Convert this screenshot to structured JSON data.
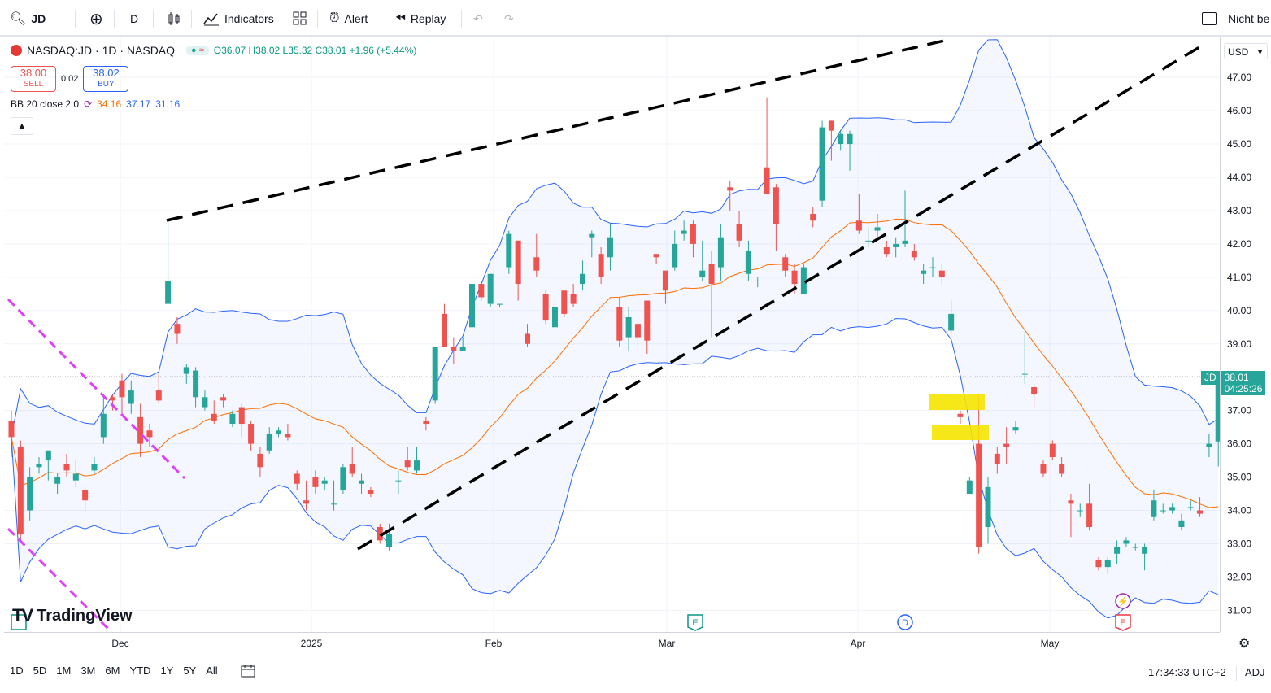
{
  "toolbar": {
    "symbol": "JD",
    "interval": "D",
    "indicators_label": "Indicators",
    "alert_label": "Alert",
    "replay_label": "Replay",
    "right_label": "Nicht be"
  },
  "legend": {
    "title": "NASDAQ:JD · 1D · NASDAQ",
    "ohlc": "O36.07 H38.02 L35.32 C38.01 +1.96 (+5.44%)",
    "sell_price": "38.00",
    "sell_label": "SELL",
    "spread": "0.02",
    "buy_price": "38.02",
    "buy_label": "BUY",
    "bb_name": "BB 20 close 2 0",
    "bb_basis": "34.16",
    "bb_upper": "37.17",
    "bb_lower": "31.16"
  },
  "currency": "USD",
  "price_badge": {
    "symbol": "JD",
    "price": "38.01",
    "countdown": "04:25:26"
  },
  "bottom": {
    "ranges": [
      "1D",
      "5D",
      "1M",
      "3M",
      "6M",
      "YTD",
      "1Y",
      "5Y",
      "All"
    ],
    "clock": "17:34:33 UTC+2",
    "adj": "ADJ"
  },
  "watermark": "TradingView",
  "colors": {
    "up": "#26a69a",
    "down": "#ef5350",
    "bb_band": "#2962ff",
    "bb_basis": "#ff6d00",
    "trend": "#000000",
    "magenta": "#e040fb",
    "highlight": "#f5e400"
  },
  "chart_data": {
    "type": "candlestick",
    "symbol": "NASDAQ:JD",
    "interval": "1D",
    "y_ticks": [
      "31.00",
      "32.00",
      "33.00",
      "34.00",
      "35.00",
      "36.00",
      "37.00",
      "38.00",
      "39.00",
      "40.00",
      "41.00",
      "42.00",
      "43.00",
      "44.00",
      "45.00",
      "46.00",
      "47.00"
    ],
    "ylim": [
      30.35,
      48.2
    ],
    "x_ticks": [
      "Dec",
      "2025",
      "Feb",
      "Mar",
      "Apr",
      "May"
    ],
    "last_price": 38.01,
    "candles": [
      [
        36.7,
        36.2,
        37.0,
        35.6
      ],
      [
        35.9,
        33.3,
        36.1,
        33.1
      ],
      [
        34.0,
        35.0,
        35.3,
        33.7
      ],
      [
        35.3,
        35.4,
        35.6,
        35.1
      ],
      [
        35.5,
        35.8,
        35.8,
        34.9
      ],
      [
        34.8,
        35.0,
        35.1,
        34.5
      ],
      [
        35.4,
        35.2,
        35.7,
        35.0
      ],
      [
        34.9,
        35.1,
        35.5,
        34.7
      ],
      [
        34.6,
        34.3,
        34.7,
        34.0
      ],
      [
        35.2,
        35.4,
        35.6,
        35.1
      ],
      [
        36.2,
        36.9,
        37.5,
        36.0
      ],
      [
        37.4,
        37.3,
        37.5,
        37.0
      ],
      [
        37.9,
        37.4,
        38.1,
        36.9
      ],
      [
        37.2,
        37.6,
        37.9,
        36.9
      ],
      [
        36.8,
        36.0,
        37.2,
        35.6
      ],
      [
        36.4,
        36.2,
        36.6,
        35.9
      ],
      [
        37.6,
        37.3,
        38.1,
        37.2
      ],
      [
        40.2,
        40.9,
        42.7,
        40.6
      ],
      [
        39.6,
        39.3,
        39.8,
        39.0
      ],
      [
        38.1,
        38.3,
        38.4,
        37.8
      ],
      [
        37.4,
        38.2,
        38.3,
        37.1
      ],
      [
        37.1,
        37.4,
        37.6,
        37.0
      ],
      [
        36.9,
        36.7,
        37.3,
        36.6
      ],
      [
        37.4,
        37.3,
        37.5,
        37.1
      ],
      [
        36.6,
        36.9,
        37.0,
        36.5
      ],
      [
        37.1,
        36.6,
        37.2,
        36.2
      ],
      [
        36.6,
        36.0,
        36.7,
        35.8
      ],
      [
        35.7,
        35.3,
        35.9,
        35.0
      ],
      [
        35.8,
        36.3,
        36.5,
        35.7
      ],
      [
        36.3,
        36.4,
        36.5,
        36.2
      ],
      [
        36.3,
        36.2,
        36.6,
        36.1
      ],
      [
        35.1,
        34.8,
        35.2,
        34.6
      ],
      [
        34.3,
        34.2,
        34.9,
        34.0
      ],
      [
        35.0,
        34.7,
        35.2,
        34.5
      ],
      [
        34.8,
        34.9,
        35.0,
        34.6
      ],
      [
        34.2,
        34.2,
        34.9,
        34.0
      ],
      [
        34.6,
        35.3,
        35.4,
        34.5
      ],
      [
        35.4,
        35.1,
        35.9,
        35.0
      ],
      [
        34.8,
        34.9,
        35.1,
        34.5
      ],
      [
        34.6,
        34.5,
        34.7,
        34.4
      ],
      [
        33.5,
        33.1,
        33.6,
        33.0
      ],
      [
        32.9,
        33.3,
        33.6,
        32.8
      ],
      [
        34.9,
        34.9,
        35.2,
        34.5
      ],
      [
        35.5,
        35.3,
        35.9,
        35.2
      ],
      [
        35.2,
        35.5,
        35.9,
        35.1
      ],
      [
        36.7,
        36.6,
        36.8,
        36.4
      ],
      [
        37.3,
        38.9,
        38.9,
        37.2
      ],
      [
        39.9,
        38.9,
        40.2,
        38.9
      ],
      [
        38.9,
        38.8,
        39.2,
        38.4
      ],
      [
        38.8,
        38.9,
        39.2,
        38.8
      ],
      [
        39.5,
        40.8,
        40.8,
        39.4
      ],
      [
        40.8,
        40.4,
        40.9,
        40.3
      ],
      [
        40.2,
        41.1,
        41.1,
        40.1
      ],
      [
        40.2,
        40.2,
        40.2,
        40.1
      ],
      [
        41.3,
        42.3,
        42.4,
        41.1
      ],
      [
        42.1,
        40.8,
        42.1,
        40.3
      ],
      [
        39.3,
        39.0,
        39.6,
        38.9
      ],
      [
        41.6,
        41.2,
        42.3,
        41.0
      ],
      [
        40.5,
        39.7,
        40.6,
        39.6
      ],
      [
        39.5,
        40.1,
        40.2,
        39.5
      ],
      [
        40.6,
        39.9,
        40.6,
        39.8
      ],
      [
        40.5,
        40.2,
        40.8,
        40.1
      ],
      [
        40.8,
        41.1,
        41.5,
        40.6
      ],
      [
        42.2,
        42.3,
        42.4,
        41.6
      ],
      [
        41.7,
        41.0,
        41.9,
        40.8
      ],
      [
        41.6,
        42.2,
        42.6,
        41.2
      ],
      [
        40.1,
        39.1,
        40.4,
        38.9
      ],
      [
        39.2,
        39.8,
        40.1,
        38.8
      ],
      [
        39.6,
        39.2,
        39.7,
        38.7
      ],
      [
        40.3,
        39.1,
        40.3,
        38.7
      ],
      [
        41.7,
        41.6,
        41.7,
        41.4
      ],
      [
        41.2,
        40.6,
        41.2,
        40.2
      ],
      [
        41.3,
        42.0,
        42.4,
        41.2
      ],
      [
        42.3,
        42.4,
        42.7,
        42.1
      ],
      [
        42.6,
        42.0,
        42.7,
        41.6
      ],
      [
        41.0,
        41.2,
        42.1,
        40.9
      ],
      [
        41.4,
        40.8,
        41.8,
        39.2
      ],
      [
        41.3,
        42.2,
        42.6,
        40.9
      ],
      [
        43.7,
        43.6,
        43.9,
        43.0
      ],
      [
        42.6,
        42.1,
        43.0,
        41.9
      ],
      [
        41.1,
        41.8,
        42.1,
        40.9
      ],
      [
        40.9,
        40.9,
        41.0,
        40.7
      ],
      [
        44.3,
        43.5,
        46.4,
        43.5
      ],
      [
        43.7,
        42.6,
        43.8,
        41.8
      ],
      [
        41.6,
        41.2,
        41.7,
        41.0
      ],
      [
        41.2,
        40.8,
        41.4,
        40.5
      ],
      [
        40.5,
        41.3,
        41.4,
        40.5
      ],
      [
        42.9,
        42.7,
        43.1,
        42.5
      ],
      [
        43.3,
        45.5,
        45.7,
        43.1
      ],
      [
        45.7,
        45.4,
        45.7,
        44.5
      ],
      [
        45.0,
        45.3,
        45.4,
        44.8
      ],
      [
        45.0,
        45.3,
        45.4,
        44.2
      ],
      [
        42.7,
        42.4,
        43.5,
        42.3
      ],
      [
        42.1,
        42.1,
        42.5,
        41.9
      ],
      [
        42.4,
        42.5,
        42.9,
        42.1
      ],
      [
        41.9,
        41.7,
        42.1,
        41.6
      ],
      [
        41.9,
        42.0,
        42.2,
        41.6
      ],
      [
        42.0,
        42.1,
        43.6,
        41.9
      ],
      [
        41.8,
        41.6,
        42.0,
        41.5
      ],
      [
        41.1,
        41.2,
        41.4,
        40.8
      ],
      [
        41.3,
        41.3,
        41.6,
        41.0
      ],
      [
        41.2,
        41.0,
        41.4,
        40.8
      ],
      [
        39.4,
        39.9,
        40.3,
        39.3
      ],
      [
        36.9,
        36.8,
        37.0,
        36.6
      ],
      [
        34.5,
        34.9,
        35.0,
        34.6
      ],
      [
        36.0,
        32.9,
        37.5,
        32.7
      ],
      [
        33.5,
        34.7,
        35.0,
        33.0
      ],
      [
        35.7,
        35.4,
        35.9,
        35.1
      ],
      [
        36.0,
        35.9,
        36.5,
        35.4
      ],
      [
        36.4,
        36.5,
        36.7,
        36.3
      ],
      [
        38.1,
        38.1,
        39.3,
        37.8
      ],
      [
        37.7,
        37.5,
        37.8,
        37.1
      ],
      [
        35.4,
        35.1,
        35.5,
        35.0
      ],
      [
        36.0,
        35.6,
        36.1,
        35.5
      ],
      [
        35.4,
        35.1,
        35.6,
        35.0
      ],
      [
        34.3,
        34.2,
        34.5,
        33.2
      ],
      [
        34.0,
        34.0,
        34.2,
        33.8
      ],
      [
        34.2,
        33.5,
        34.8,
        33.4
      ],
      [
        32.5,
        32.3,
        32.6,
        32.2
      ],
      [
        32.3,
        32.5,
        32.6,
        32.1
      ],
      [
        32.7,
        32.9,
        33.1,
        32.4
      ],
      [
        33.0,
        33.1,
        33.2,
        32.9
      ],
      [
        32.9,
        32.9,
        33.0,
        32.8
      ],
      [
        32.7,
        32.9,
        33.0,
        32.2
      ],
      [
        33.8,
        34.3,
        34.6,
        33.7
      ],
      [
        34.0,
        34.0,
        34.2,
        33.9
      ],
      [
        34.0,
        34.1,
        34.2,
        33.9
      ],
      [
        33.5,
        33.7,
        33.9,
        33.4
      ],
      [
        34.1,
        34.1,
        34.3,
        34.0
      ],
      [
        34.0,
        33.9,
        34.4,
        33.8
      ],
      [
        35.9,
        36.0,
        36.3,
        35.6
      ],
      [
        36.07,
        38.01,
        38.02,
        35.32
      ]
    ]
  }
}
